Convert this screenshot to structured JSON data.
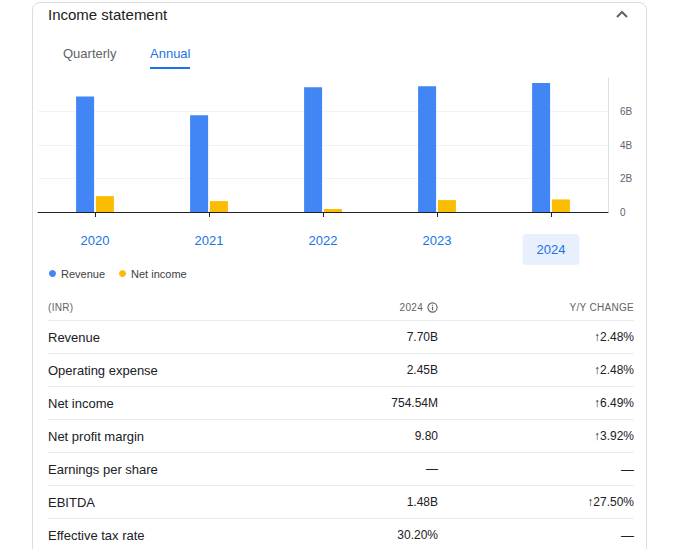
{
  "header": {
    "title": "Income statement"
  },
  "tabs": {
    "items": [
      "Quarterly",
      "Annual"
    ],
    "active": "Annual"
  },
  "chart_data": {
    "type": "bar",
    "categories": [
      "2020",
      "2021",
      "2022",
      "2023",
      "2024"
    ],
    "series": [
      {
        "name": "Revenue",
        "color": "#4285f4",
        "values": [
          6.9,
          5.77,
          7.45,
          7.51,
          7.7
        ]
      },
      {
        "name": "Net income",
        "color": "#fbbc04",
        "values": [
          0.95,
          0.65,
          0.18,
          0.71,
          0.75
        ]
      }
    ],
    "ylim": [
      0,
      8
    ],
    "yticks": [
      0,
      {
        "value": 2,
        "label": "2B"
      },
      {
        "value": 4,
        "label": "4B"
      },
      {
        "value": 6,
        "label": "6B"
      }
    ],
    "grid": true,
    "legend": "bottom-left"
  },
  "table": {
    "columns": [
      "(INR)",
      "2024",
      "Y/Y CHANGE"
    ],
    "rows": [
      [
        "Revenue",
        "7.70B",
        "↑2.48%"
      ],
      [
        "Operating expense",
        "2.45B",
        "↑2.48%"
      ],
      [
        "Net income",
        "754.54M",
        "↑6.49%"
      ],
      [
        "Net profit margin",
        "9.80",
        "↑3.92%"
      ],
      [
        "Earnings per share",
        "—",
        "—"
      ],
      [
        "EBITDA",
        "1.48B",
        "↑27.50%"
      ],
      [
        "Effective tax rate",
        "30.20%",
        "—"
      ]
    ]
  }
}
